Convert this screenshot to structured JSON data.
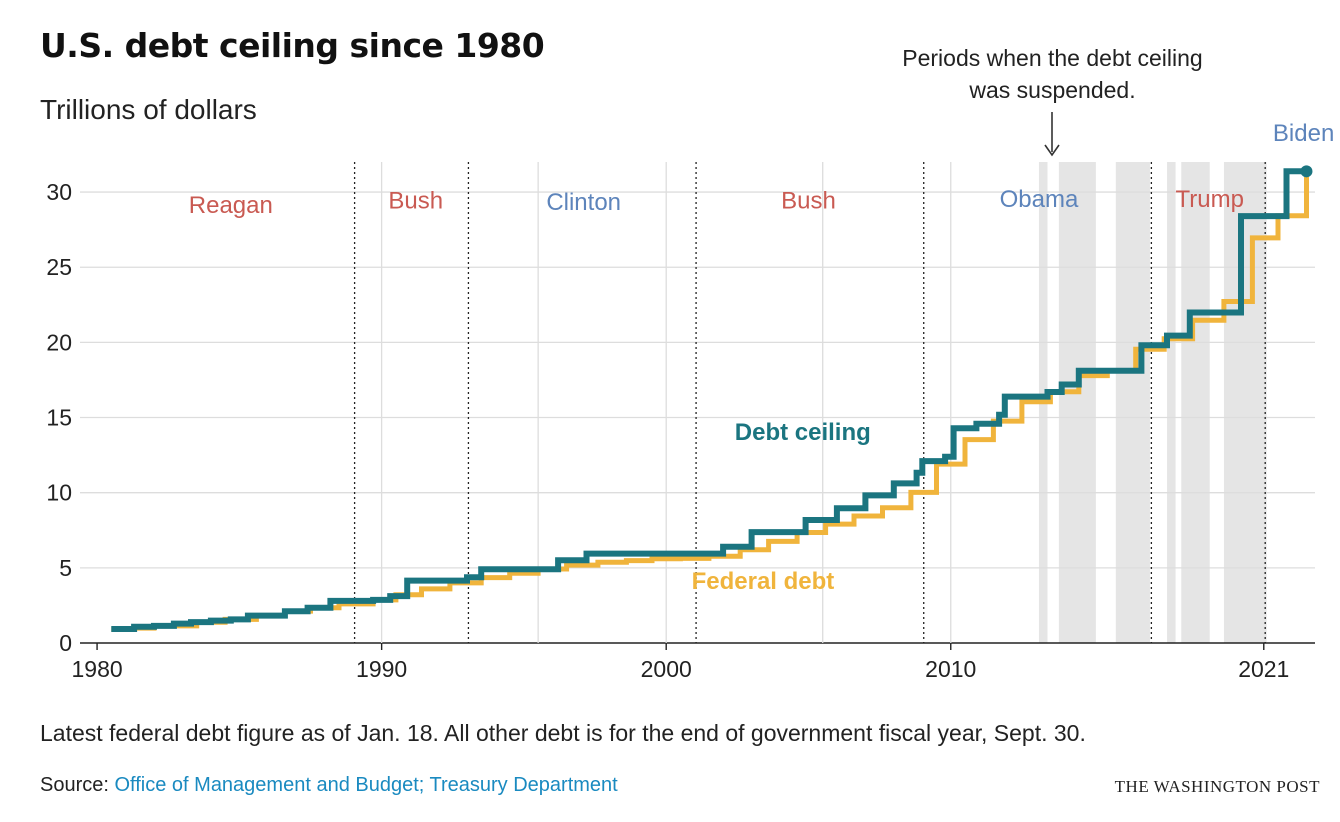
{
  "header": {
    "title": "U.S. debt ceiling since 1980",
    "subtitle": "Trillions of dollars"
  },
  "annotation": {
    "text_line1": "Periods when the debt ceiling",
    "text_line2": "was suspended."
  },
  "footer": {
    "note": "Latest federal debt figure as of Jan. 18. All other debt is for the end of government fiscal year, Sept. 30.",
    "source_prefix": "Source: ",
    "source_link": "Office of Management and Budget; Treasury Department",
    "credit": "THE WASHINGTON POST"
  },
  "colors": {
    "ceiling": "#1b7580",
    "debt": "#f0b43c",
    "republican": "#c95a52",
    "democrat": "#5d84bb",
    "suspension": "#e5e5e5",
    "grid": "#dddddd"
  },
  "chart_data": {
    "type": "line",
    "step": true,
    "x_ticks": [
      1980,
      1990,
      2000,
      2010,
      2021
    ],
    "y_ticks": [
      0,
      5,
      10,
      15,
      20,
      25,
      30
    ],
    "xlim": [
      1979.4,
      2022.8
    ],
    "ylim": [
      0,
      32
    ],
    "grid": true,
    "series": [
      {
        "name": "Debt ceiling",
        "key": "ceiling",
        "label_at": [
          2004.8,
          13.5
        ],
        "points": [
          [
            1980.5,
            0.93
          ],
          [
            1981.3,
            1.08
          ],
          [
            1982.0,
            1.14
          ],
          [
            1982.7,
            1.29
          ],
          [
            1983.3,
            1.39
          ],
          [
            1984.0,
            1.49
          ],
          [
            1984.7,
            1.57
          ],
          [
            1985.3,
            1.82
          ],
          [
            1986.6,
            2.11
          ],
          [
            1987.4,
            2.35
          ],
          [
            1988.2,
            2.8
          ],
          [
            1989.7,
            2.87
          ],
          [
            1990.3,
            3.12
          ],
          [
            1990.9,
            4.15
          ],
          [
            1993.0,
            4.37
          ],
          [
            1993.5,
            4.9
          ],
          [
            1996.2,
            5.5
          ],
          [
            1997.2,
            5.95
          ],
          [
            2002.0,
            6.4
          ],
          [
            2003.0,
            7.38
          ],
          [
            2004.9,
            8.18
          ],
          [
            2006.0,
            8.97
          ],
          [
            2007.0,
            9.82
          ],
          [
            2008.0,
            10.62
          ],
          [
            2008.8,
            11.32
          ],
          [
            2009.0,
            12.1
          ],
          [
            2009.8,
            12.39
          ],
          [
            2010.1,
            14.29
          ],
          [
            2010.9,
            14.59
          ],
          [
            2011.7,
            15.19
          ],
          [
            2011.9,
            16.39
          ],
          [
            2013.4,
            16.7
          ],
          [
            2013.9,
            17.2
          ],
          [
            2014.5,
            18.11
          ],
          [
            2016.0,
            18.11
          ],
          [
            2016.7,
            19.81
          ],
          [
            2017.6,
            20.45
          ],
          [
            2018.4,
            21.99
          ],
          [
            2019.8,
            21.99
          ],
          [
            2020.2,
            28.4
          ],
          [
            2021.6,
            28.4
          ],
          [
            2021.8,
            31.38
          ],
          [
            2022.5,
            31.38
          ]
        ]
      },
      {
        "name": "Federal debt",
        "key": "debt",
        "label_at": [
          2003.4,
          3.6
        ],
        "points": [
          [
            1980.5,
            0.91
          ],
          [
            1981.3,
            0.99
          ],
          [
            1982.0,
            1.14
          ],
          [
            1982.8,
            1.14
          ],
          [
            1983.5,
            1.38
          ],
          [
            1984.5,
            1.57
          ],
          [
            1985.6,
            1.82
          ],
          [
            1986.6,
            2.12
          ],
          [
            1987.5,
            2.35
          ],
          [
            1988.5,
            2.6
          ],
          [
            1989.7,
            2.87
          ],
          [
            1990.5,
            3.21
          ],
          [
            1991.4,
            3.6
          ],
          [
            1992.4,
            4.0
          ],
          [
            1993.5,
            4.35
          ],
          [
            1994.5,
            4.64
          ],
          [
            1995.5,
            4.92
          ],
          [
            1996.5,
            5.18
          ],
          [
            1997.6,
            5.37
          ],
          [
            1998.6,
            5.48
          ],
          [
            1999.5,
            5.61
          ],
          [
            2000.5,
            5.63
          ],
          [
            2001.5,
            5.77
          ],
          [
            2002.6,
            6.2
          ],
          [
            2003.6,
            6.76
          ],
          [
            2004.6,
            7.35
          ],
          [
            2005.6,
            7.91
          ],
          [
            2006.6,
            8.45
          ],
          [
            2007.6,
            9.0
          ],
          [
            2008.6,
            10.02
          ],
          [
            2009.5,
            11.9
          ],
          [
            2010.5,
            13.53
          ],
          [
            2011.5,
            14.76
          ],
          [
            2012.5,
            16.05
          ],
          [
            2013.5,
            16.72
          ],
          [
            2014.5,
            17.79
          ],
          [
            2015.5,
            18.12
          ],
          [
            2016.5,
            19.54
          ],
          [
            2017.5,
            20.24
          ],
          [
            2018.5,
            21.47
          ],
          [
            2019.6,
            22.72
          ],
          [
            2020.6,
            26.95
          ],
          [
            2021.5,
            28.43
          ],
          [
            2022.5,
            31.0
          ]
        ]
      }
    ],
    "current_marker": [
      2022.5,
      31.38
    ],
    "suspension_periods": [
      [
        2013.1,
        2013.4
      ],
      [
        2013.8,
        2015.1
      ],
      [
        2015.8,
        2017.0
      ],
      [
        2017.6,
        2017.9
      ],
      [
        2018.1,
        2019.1
      ],
      [
        2019.6,
        2021.1
      ]
    ],
    "presidencies": [
      {
        "name": "Reagan",
        "party": "republican",
        "end": 1989.05,
        "label_x": 1984.7,
        "label_y": 28.6
      },
      {
        "name": "Bush",
        "party": "republican",
        "end": 1993.05,
        "label_x": 1991.2,
        "label_y": 28.9
      },
      {
        "name": "Clinton",
        "party": "democrat",
        "end": 2001.05,
        "label_x": 1997.1,
        "label_y": 28.8
      },
      {
        "name": "Bush",
        "party": "republican",
        "end": 2009.05,
        "label_x": 2005.0,
        "label_y": 28.9
      },
      {
        "name": "Obama",
        "party": "democrat",
        "end": 2017.05,
        "label_x": 2013.1,
        "label_y": 29.0
      },
      {
        "name": "Trump",
        "party": "republican",
        "end": 2021.05,
        "label_x": 2019.1,
        "label_y": 29.0
      },
      {
        "name": "Biden",
        "party": "democrat",
        "end": null,
        "label_x": 2022.4,
        "label_y": 33.4
      }
    ]
  }
}
